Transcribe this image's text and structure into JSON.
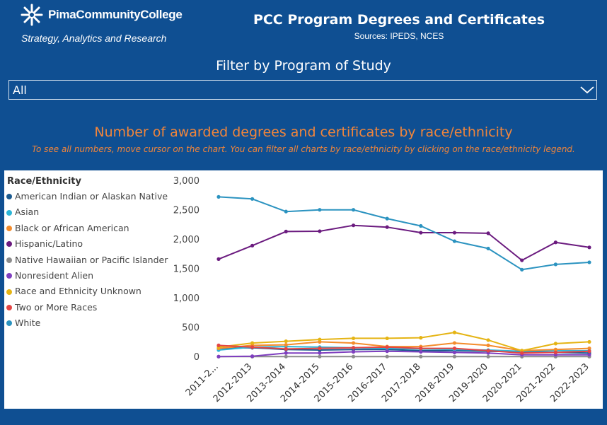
{
  "header": {
    "org_name": "PimaCommunityCollege",
    "department": "Strategy, Analytics and Research",
    "title": "PCC Program Degrees and Certificates",
    "sources": "Sources: IPEDS, NCES"
  },
  "filter": {
    "label": "Filter by Program of Study",
    "selected": "All",
    "icon": "chevron-down-icon"
  },
  "chart_section": {
    "title": "Number of awarded degrees and certificates by race/ethnicity",
    "hint": "To see all numbers, move cursor on the chart. You can filter all charts by race/ethnicity by clicking on the race/ethnicity legend."
  },
  "colors": {
    "background": "#0f4f92",
    "accent": "#f1853b"
  },
  "chart_data": {
    "type": "line",
    "legend_title": "Race/Ethnicity",
    "legend_position": "left",
    "x": [
      "2011-2...",
      "2012-2013",
      "2013-2014",
      "2014-2015",
      "2015-2016",
      "2016-2017",
      "2017-2018",
      "2018-2019",
      "2019-2020",
      "2020-2021",
      "2021-2022",
      "2022-2023"
    ],
    "yticks": [
      "0",
      "500",
      "1,000",
      "1,500",
      "2,000",
      "2,500",
      "3,000"
    ],
    "ylim": [
      0,
      3000
    ],
    "grid": false,
    "series": [
      {
        "name": "American Indian or Alaskan Native",
        "color": "#1b5a8f",
        "values": [
          150,
          160,
          130,
          120,
          130,
          130,
          110,
          110,
          100,
          90,
          80,
          70
        ]
      },
      {
        "name": "Asian",
        "color": "#2cb6d7",
        "values": [
          120,
          170,
          180,
          170,
          160,
          150,
          140,
          130,
          120,
          100,
          110,
          110
        ]
      },
      {
        "name": "Black or African American",
        "color": "#f48c2c",
        "values": [
          150,
          200,
          210,
          260,
          240,
          180,
          180,
          240,
          200,
          110,
          130,
          150
        ]
      },
      {
        "name": "Hispanic/Latino",
        "color": "#6b1b7f",
        "values": [
          1670,
          1900,
          2140,
          2145,
          2245,
          2215,
          2120,
          2120,
          2110,
          1650,
          1955,
          1870
        ]
      },
      {
        "name": "Native Hawaiian or Pacific Islander",
        "color": "#8c8c8c",
        "values": [
          8,
          8,
          10,
          10,
          10,
          10,
          10,
          10,
          8,
          8,
          8,
          8
        ]
      },
      {
        "name": "Nonresident Alien",
        "color": "#7f3fbf",
        "values": [
          10,
          15,
          70,
          70,
          90,
          100,
          90,
          80,
          70,
          40,
          40,
          40
        ]
      },
      {
        "name": "Race and Ethnicity Unknown",
        "color": "#e5b414",
        "values": [
          170,
          240,
          270,
          300,
          320,
          320,
          330,
          420,
          290,
          110,
          230,
          260
        ]
      },
      {
        "name": "Two or More Races",
        "color": "#e44545",
        "values": [
          200,
          170,
          140,
          150,
          160,
          170,
          150,
          150,
          110,
          70,
          80,
          100
        ]
      },
      {
        "name": "White",
        "color": "#2b93c0",
        "values": [
          2730,
          2695,
          2480,
          2510,
          2510,
          2360,
          2235,
          1975,
          1850,
          1490,
          1580,
          1615
        ]
      }
    ]
  }
}
